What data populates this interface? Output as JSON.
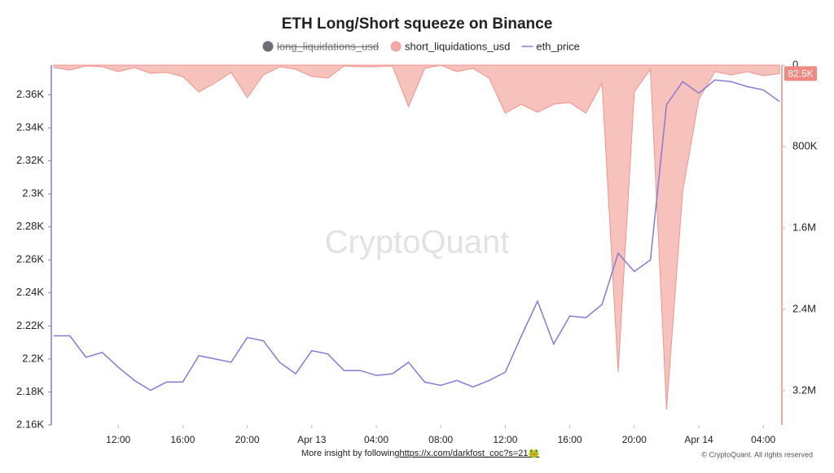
{
  "chart_data": {
    "type": "combo",
    "title": "ETH Long/Short squeeze on Binance",
    "watermark": "CryptoQuant",
    "footer": "More insight by following ",
    "footer_link": "https://x.com/darkfost_coc?s=21🐸",
    "copyright": "© CryptoQuant. All rights reserved",
    "categories": [
      null,
      null,
      null,
      null,
      "12:00",
      null,
      null,
      null,
      "16:00",
      null,
      null,
      null,
      "20:00",
      null,
      null,
      null,
      "Apr 13",
      null,
      null,
      null,
      "04:00",
      null,
      null,
      null,
      "08:00",
      null,
      null,
      null,
      "12:00",
      null,
      null,
      null,
      "16:00",
      null,
      null,
      null,
      "20:00",
      null,
      null,
      null,
      "Apr 14",
      null,
      null,
      null,
      "04:00",
      null
    ],
    "legend": [
      {
        "name": "long_liquidations_usd",
        "color": "#6e6e78",
        "hidden": true
      }
    ],
    "series": [
      {
        "name": "short_liquidations_usd",
        "type": "area",
        "axis": "y2",
        "color": "#f4a6a0",
        "values": [
          24000,
          48000,
          8000,
          16000,
          64000,
          24000,
          80000,
          72000,
          112000,
          264000,
          176000,
          72000,
          320000,
          96000,
          16000,
          40000,
          112000,
          128000,
          8000,
          16000,
          16000,
          8000,
          408000,
          32000,
          0,
          64000,
          32000,
          128000,
          472000,
          384000,
          464000,
          384000,
          368000,
          472000,
          176000,
          3016000,
          264000,
          40000,
          3384000,
          1240000,
          336000,
          64000,
          96000,
          64000,
          104000,
          82500
        ]
      },
      {
        "name": "eth_price",
        "type": "line",
        "color": "#8a78d6",
        "values": [
          2214,
          2214,
          2201,
          2204,
          2195,
          2187,
          2181,
          2186,
          2186,
          2202,
          2200,
          2198,
          2213,
          2211,
          2198,
          2191,
          2205,
          2203,
          2193,
          2193,
          2190,
          2191,
          2198,
          2186,
          2184,
          2187,
          2183,
          2187,
          2192,
          2214,
          2235,
          2209,
          2226,
          2225,
          2233,
          2264,
          2253,
          2260,
          2354,
          2368,
          2361,
          2369,
          2368,
          2365,
          2363,
          2356
        ]
      }
    ],
    "ylim": [
      2160,
      2378
    ],
    "yticks": [
      {
        "value": 2160,
        "label": "2.16K"
      },
      {
        "value": 2180,
        "label": "2.18K"
      },
      {
        "value": 2200,
        "label": "2.2K"
      },
      {
        "value": 2220,
        "label": "2.22K"
      },
      {
        "value": 2240,
        "label": "2.24K"
      },
      {
        "value": 2260,
        "label": "2.26K"
      },
      {
        "value": 2280,
        "label": "2.28K"
      },
      {
        "value": 2300,
        "label": "2.3K"
      },
      {
        "value": 2320,
        "label": "2.32K"
      },
      {
        "value": 2340,
        "label": "2.34K"
      },
      {
        "value": 2360,
        "label": "2.36K"
      }
    ],
    "y2lim": [
      0,
      3536000
    ],
    "y2_inverted": true,
    "y2ticks": [
      0,
      {
        "value": 800000,
        "label": "800K"
      },
      {
        "value": 1600000,
        "label": "1.6M"
      },
      {
        "value": 2400000,
        "label": "2.4M"
      },
      {
        "value": 3200000,
        "label": "3.2M"
      }
    ],
    "y2_flag": {
      "value": 82500,
      "label": "82.5K"
    }
  }
}
